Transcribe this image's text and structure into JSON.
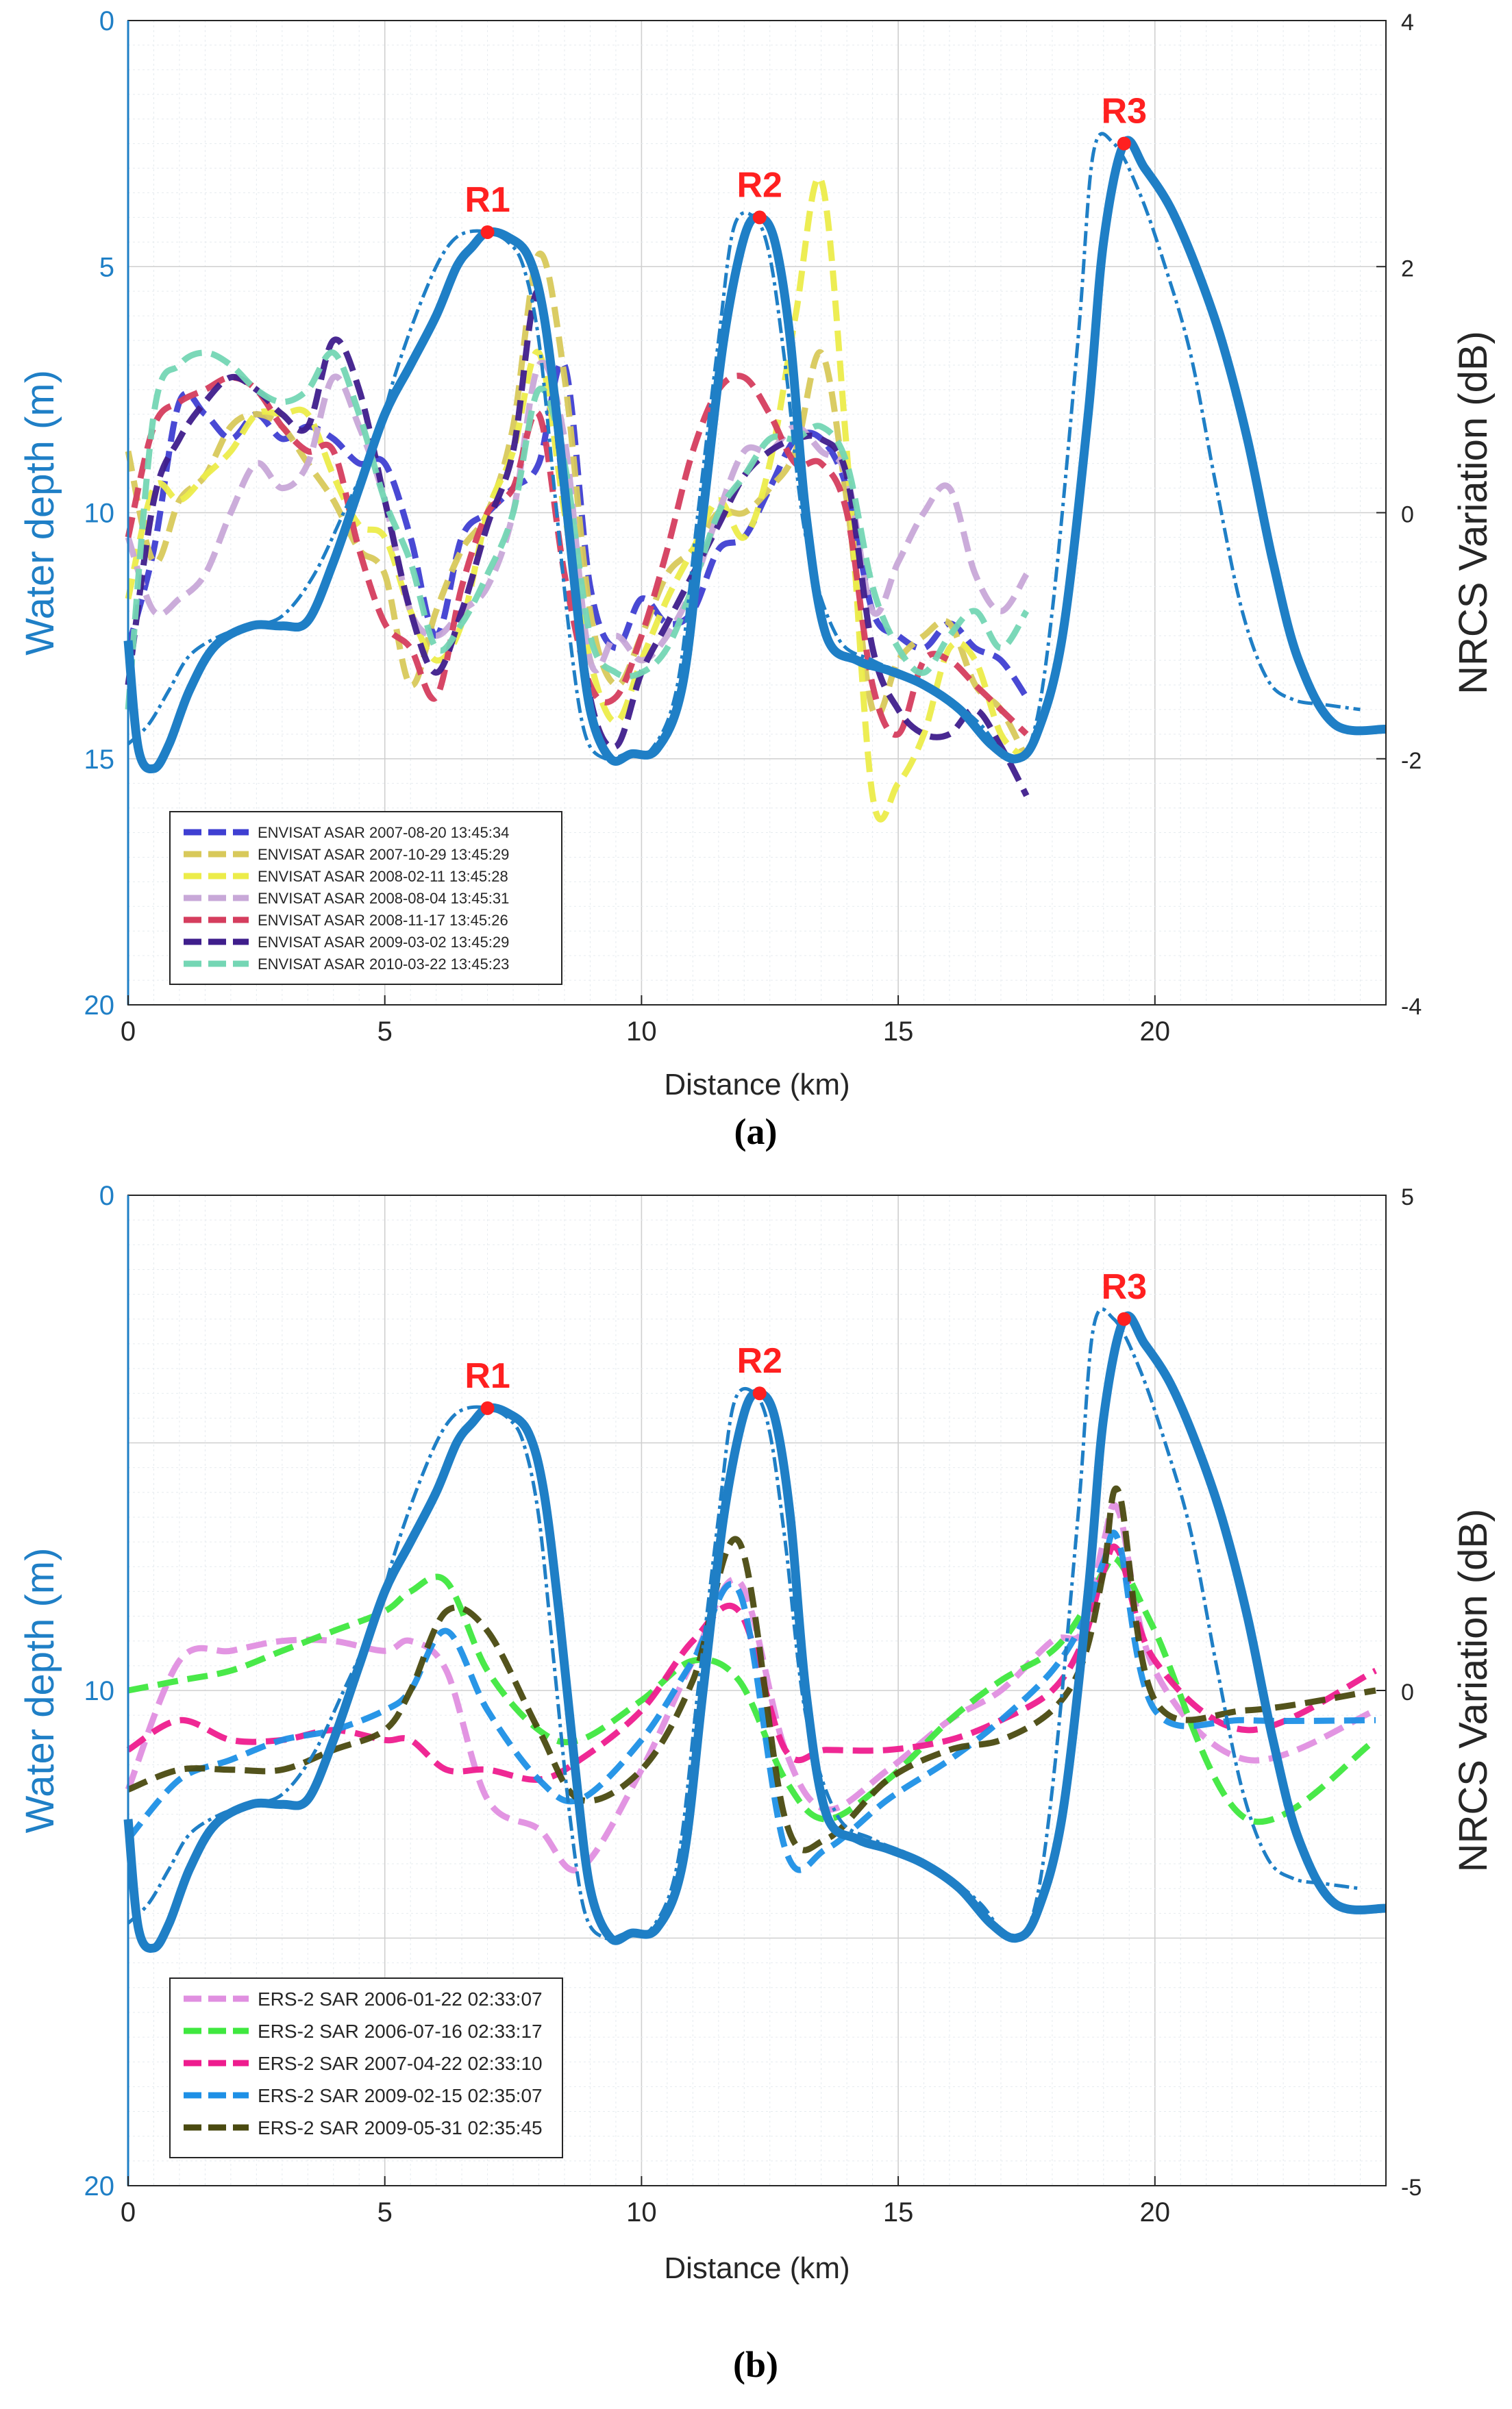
{
  "chart_data": [
    {
      "type": "line",
      "panel_label": "(a)",
      "xlabel": "Distance (km)",
      "ylabel_left": "Water depth (m)",
      "ylabel_right": "NRCS Variation (dB)",
      "xlim": [
        0,
        24.5
      ],
      "ylim_left": [
        0,
        20
      ],
      "ylim_right": [
        -4,
        4
      ],
      "left_axis_inverted": true,
      "x_ticks": [
        "0",
        "5",
        "10",
        "15",
        "20"
      ],
      "y_ticks_left": [
        "0",
        "5",
        "10",
        "15",
        "20"
      ],
      "y_ticks_right": [
        "4",
        "2",
        "0",
        "-2",
        "-4"
      ],
      "grid": true,
      "legend_position": "bottom-left",
      "color_depth": "#1F7FC6",
      "color_labels": "#FF2020",
      "peaks": [
        {
          "label": "R1",
          "x": 7.0,
          "depth": 4.3
        },
        {
          "label": "R2",
          "x": 12.3,
          "depth": 4.0
        },
        {
          "label": "R3",
          "x": 19.4,
          "depth": 2.5
        }
      ],
      "depth_solid": {
        "x": [
          0,
          0.2,
          0.5,
          0.8,
          1.2,
          1.7,
          2.4,
          3.0,
          3.5,
          4.0,
          4.5,
          5.0,
          5.5,
          6.0,
          6.4,
          6.7,
          7.0,
          7.4,
          7.8,
          8.1,
          8.4,
          8.7,
          9.0,
          9.4,
          9.8,
          10.3,
          10.8,
          11.2,
          11.6,
          12.0,
          12.3,
          12.6,
          12.9,
          13.2,
          13.6,
          14.2,
          14.8,
          15.5,
          16.2,
          16.8,
          17.3,
          17.7,
          18.2,
          18.7,
          19.0,
          19.4,
          19.8,
          20.3,
          20.8,
          21.3,
          21.8,
          22.3,
          22.8,
          23.5,
          24.5
        ],
        "y": [
          12.6,
          14.8,
          15.2,
          14.7,
          13.6,
          12.7,
          12.3,
          12.3,
          12.2,
          11.0,
          9.5,
          8.0,
          7.0,
          6.0,
          5.0,
          4.6,
          4.3,
          4.4,
          4.8,
          6.0,
          8.5,
          11.5,
          14.0,
          15.0,
          14.9,
          14.8,
          13.5,
          10.0,
          6.5,
          4.4,
          4.0,
          4.5,
          6.5,
          10.0,
          12.5,
          13.0,
          13.2,
          13.5,
          14.0,
          14.7,
          15.0,
          14.5,
          12.5,
          8.0,
          4.5,
          2.5,
          3.0,
          3.8,
          5.0,
          6.5,
          8.5,
          11.0,
          13.0,
          14.3,
          14.4
        ]
      },
      "depth_dashdot": {
        "x": [
          0,
          0.4,
          0.8,
          1.2,
          1.8,
          2.4,
          3.0,
          3.6,
          4.2,
          4.8,
          5.2,
          5.6,
          6.0,
          6.3,
          6.6,
          7.0,
          7.4,
          7.7,
          8.0,
          8.3,
          8.6,
          8.9,
          9.3,
          9.7,
          10.2,
          10.7,
          11.1,
          11.5,
          11.8,
          12.2,
          12.5,
          12.8,
          13.2,
          13.8,
          14.5,
          15.2,
          15.9,
          16.6,
          17.1,
          17.6,
          18.0,
          18.5,
          18.8,
          19.2,
          19.7,
          20.2,
          20.7,
          21.2,
          21.7,
          22.2,
          22.7,
          23.3,
          24.0
        ],
        "y": [
          14.7,
          14.3,
          13.6,
          12.9,
          12.5,
          12.3,
          12.1,
          11.3,
          10.0,
          8.6,
          7.2,
          6.0,
          5.0,
          4.5,
          4.3,
          4.3,
          4.5,
          5.0,
          6.5,
          9.5,
          12.5,
          14.5,
          15.0,
          14.9,
          14.8,
          13.5,
          10.0,
          6.5,
          4.2,
          4.0,
          4.8,
          7.0,
          10.5,
          12.5,
          13.0,
          13.3,
          13.7,
          14.3,
          14.9,
          14.6,
          12.0,
          6.5,
          2.7,
          2.5,
          3.5,
          5.0,
          6.8,
          9.5,
          12.0,
          13.4,
          13.8,
          13.9,
          14.0
        ]
      },
      "series": [
        {
          "name": "ENVISAT ASAR 2007-08-20 13:45:34",
          "color": "#3F3FD2",
          "values": [
            -1.1,
            -0.3,
            0.9,
            0.8,
            0.6,
            0.8,
            0.6,
            0.7,
            0.6,
            0.4,
            0.4,
            -0.2,
            -1.0,
            -0.2,
            0.0,
            0.2,
            0.4,
            1.2,
            -0.6,
            -1.1,
            -0.7,
            -0.9,
            -0.8,
            -0.3,
            -0.2,
            0.2,
            0.6,
            0.6,
            0.2,
            -0.8,
            -1.0,
            -1.1,
            -0.9,
            -1.1,
            -1.2,
            -1.5
          ]
        },
        {
          "name": "ENVISAT ASAR 2007-10-29 13:45:29",
          "color": "#D8C95B",
          "values": [
            0.5,
            -0.4,
            0.1,
            0.3,
            0.7,
            0.8,
            0.7,
            0.4,
            0.1,
            -0.3,
            -0.5,
            -1.4,
            -0.8,
            -0.3,
            0.0,
            0.7,
            2.1,
            1.1,
            -0.8,
            -1.4,
            -1.0,
            -0.5,
            -0.3,
            0.0,
            0.0,
            0.2,
            0.5,
            1.3,
            0.1,
            -1.6,
            -1.2,
            -1.0,
            -0.9,
            -1.4,
            -1.6,
            -2.0
          ]
        },
        {
          "name": "ENVISAT ASAR 2008-02-11 13:45:28",
          "color": "#ECEC4A",
          "values": [
            -0.7,
            0.2,
            0.1,
            0.3,
            0.5,
            0.8,
            0.8,
            0.8,
            0.3,
            -0.1,
            -0.2,
            -0.8,
            -1.2,
            -0.9,
            0.0,
            0.5,
            1.3,
            0.0,
            -1.2,
            -1.7,
            -1.2,
            -0.7,
            -0.3,
            0.1,
            -0.2,
            0.4,
            1.6,
            2.7,
            0.5,
            -2.3,
            -2.2,
            -1.8,
            -1.1,
            -1.2,
            -1.8,
            -2.0
          ]
        },
        {
          "name": "ENVISAT ASAR 2008-08-04 13:45:31",
          "color": "#C8A8D8",
          "values": [
            -0.2,
            -0.8,
            -0.7,
            -0.5,
            0.0,
            0.4,
            0.2,
            0.4,
            1.1,
            0.7,
            0.1,
            -0.8,
            -1.0,
            -0.8,
            -0.6,
            0.0,
            1.2,
            0.6,
            -1.2,
            -1.0,
            -1.2,
            -1.0,
            -0.6,
            0.0,
            0.5,
            0.5,
            0.7,
            0.5,
            0.3,
            -0.8,
            -0.4,
            0.0,
            0.2,
            -0.5,
            -0.8,
            -0.5
          ]
        },
        {
          "name": "ENVISAT ASAR 2008-11-17 13:45:26",
          "color": "#D53D5E",
          "values": [
            -0.2,
            0.7,
            0.9,
            1.0,
            1.1,
            1.0,
            0.7,
            0.5,
            0.5,
            -0.3,
            -0.9,
            -1.1,
            -1.5,
            -0.6,
            0.0,
            0.2,
            0.8,
            -0.5,
            -1.4,
            -1.5,
            -1.0,
            -0.3,
            0.5,
            1.0,
            1.1,
            0.8,
            0.4,
            0.4,
            0.0,
            -1.4,
            -1.8,
            -1.2,
            -1.2,
            -1.4,
            -1.6,
            -1.8
          ]
        },
        {
          "name": "ENVISAT ASAR 2009-03-02 13:45:29",
          "color": "#3F1E8C",
          "values": [
            -1.4,
            0.1,
            0.6,
            0.9,
            1.1,
            1.0,
            0.8,
            0.7,
            1.4,
            1.0,
            0.1,
            -0.8,
            -1.3,
            -0.8,
            -0.1,
            0.5,
            1.8,
            0.1,
            -1.5,
            -1.9,
            -1.3,
            -0.9,
            -0.5,
            -0.1,
            0.3,
            0.5,
            0.6,
            0.6,
            0.3,
            -1.1,
            -1.6,
            -1.8,
            -1.8,
            -1.6,
            -1.9,
            -2.3
          ]
        },
        {
          "name": "ENVISAT ASAR 2010-03-22 13:45:23",
          "color": "#74D6B4",
          "values": [
            -1.6,
            0.8,
            1.2,
            1.3,
            1.2,
            1.0,
            0.9,
            1.0,
            1.3,
            0.8,
            0.1,
            -0.4,
            -1.1,
            -0.9,
            -0.5,
            0.0,
            1.0,
            0.4,
            -1.0,
            -1.3,
            -1.3,
            -1.1,
            -0.6,
            0.0,
            0.3,
            0.6,
            0.6,
            0.7,
            0.4,
            -0.6,
            -1.1,
            -1.3,
            -1.0,
            -0.8,
            -1.1,
            -0.8
          ]
        }
      ],
      "series_x": [
        0,
        0.5,
        1.0,
        1.5,
        2.0,
        2.5,
        3.0,
        3.5,
        4.0,
        4.5,
        5.0,
        5.5,
        6.0,
        6.5,
        7.0,
        7.5,
        8.0,
        8.5,
        9.0,
        9.5,
        10.0,
        10.5,
        11.0,
        11.5,
        12.0,
        12.5,
        13.0,
        13.5,
        14.0,
        14.5,
        15.0,
        15.5,
        16.0,
        16.5,
        17.0,
        17.5
      ]
    },
    {
      "type": "line",
      "panel_label": "(b)",
      "xlabel": "Distance (km)",
      "ylabel_left": "Water depth (m)",
      "ylabel_right": "NRCS Variation (dB)",
      "xlim": [
        0,
        24.5
      ],
      "ylim_left": [
        0,
        20
      ],
      "ylim_right": [
        -5,
        5
      ],
      "left_axis_inverted": true,
      "x_ticks": [
        "0",
        "5",
        "10",
        "15",
        "20"
      ],
      "y_ticks_left": [
        "0",
        "10",
        "20"
      ],
      "y_ticks_right": [
        "5",
        "0",
        "-5"
      ],
      "grid": true,
      "legend_position": "bottom-left",
      "color_depth": "#1F7FC6",
      "color_labels": "#FF2020",
      "peaks": [
        {
          "label": "R1",
          "x": 7.0,
          "depth": 4.3
        },
        {
          "label": "R2",
          "x": 12.3,
          "depth": 4.0
        },
        {
          "label": "R3",
          "x": 19.4,
          "depth": 2.5
        }
      ],
      "series": [
        {
          "name": "ERS-2 SAR 2006-01-22 02:33:07",
          "color": "#E08FE0",
          "values": [
            -1.0,
            0.3,
            0.4,
            0.5,
            0.5,
            0.4,
            0.5,
            0.2,
            -1.1,
            -1.4,
            -1.8,
            -0.8,
            0.3,
            1.1,
            -0.6,
            -1.2,
            -0.8,
            -0.3,
            0.0,
            0.5,
            0.6,
            1.5,
            1.8,
            0.2,
            -0.7,
            -0.2
          ]
        },
        {
          "name": "ERS-2 SAR 2006-07-16 02:33:17",
          "color": "#3FE83F",
          "values": [
            0.0,
            0.1,
            0.2,
            0.4,
            0.6,
            0.8,
            1.0,
            1.1,
            0.2,
            -0.4,
            -0.5,
            -0.1,
            0.3,
            0.1,
            -0.9,
            -1.3,
            -0.9,
            -0.3,
            0.1,
            0.4,
            0.8,
            1.2,
            1.3,
            0.6,
            -1.3,
            -0.5
          ]
        },
        {
          "name": "ERS-2 SAR 2007-04-22 02:33:10",
          "color": "#EE1C8E",
          "values": [
            -0.6,
            -0.3,
            -0.5,
            -0.5,
            -0.4,
            -0.5,
            -0.5,
            -0.8,
            -0.8,
            -0.9,
            -0.7,
            -0.2,
            0.5,
            0.8,
            -0.6,
            -0.6,
            -0.6,
            -0.5,
            -0.3,
            0.0,
            0.5,
            1.2,
            1.4,
            0.3,
            -0.4,
            0.2
          ]
        },
        {
          "name": "ERS-2 SAR 2009-02-15 02:35:07",
          "color": "#1E90E6",
          "values": [
            -1.5,
            -0.9,
            -0.7,
            -0.5,
            -0.4,
            -0.2,
            0.0,
            0.6,
            -0.2,
            -0.9,
            -1.1,
            -0.5,
            0.3,
            1.0,
            -1.6,
            -1.6,
            -1.1,
            -0.7,
            -0.3,
            0.2,
            0.7,
            1.3,
            1.5,
            -0.2,
            -0.3,
            -0.3
          ]
        },
        {
          "name": "ERS-2 SAR 2009-05-31 02:35:45",
          "color": "#4A4A10",
          "values": [
            -1.0,
            -0.8,
            -0.8,
            -0.8,
            -0.6,
            -0.4,
            0.0,
            0.8,
            0.6,
            -0.4,
            -1.1,
            -0.8,
            0.1,
            1.5,
            -1.3,
            -1.5,
            -0.9,
            -0.6,
            -0.5,
            -0.2,
            0.3,
            1.2,
            2.0,
            -0.1,
            -0.2,
            0.0
          ]
        }
      ],
      "series_x": [
        0,
        1,
        2,
        3,
        4,
        5,
        5.5,
        6.2,
        7,
        8,
        8.8,
        10,
        11,
        11.9,
        12.8,
        13.6,
        14.8,
        16,
        17,
        18,
        18.6,
        19.0,
        19.3,
        20.0,
        21.8,
        24.3
      ]
    }
  ]
}
